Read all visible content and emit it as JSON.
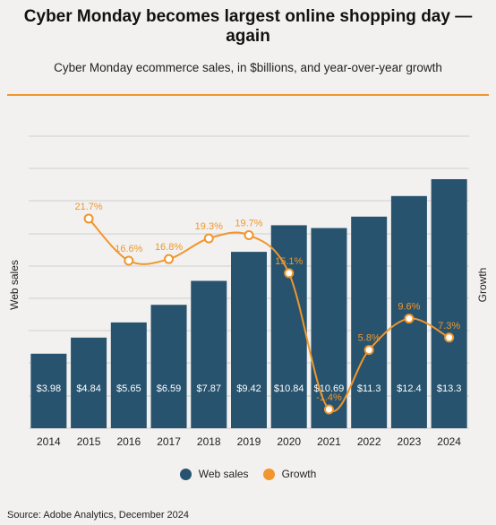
{
  "header": {
    "title": "Cyber Monday becomes largest online shopping day — again",
    "subtitle": "Cyber Monday ecommerce sales, in $billions, and year-over-year growth"
  },
  "footer": {
    "source": "Source: Adobe Analytics, December 2024"
  },
  "colors": {
    "bar": "#27536e",
    "line": "#f0962d",
    "grid": "#d0d0d0",
    "rule": "#f0962d"
  },
  "chart_data": {
    "type": "bar",
    "categories": [
      "2014",
      "2015",
      "2016",
      "2017",
      "2018",
      "2019",
      "2020",
      "2021",
      "2022",
      "2023",
      "2024"
    ],
    "ylabel": "Web sales",
    "y2label": "Growth",
    "ylim": [
      0,
      14
    ],
    "y2lim": [
      -10,
      30
    ],
    "grid": true,
    "legend_position": "bottom",
    "series": [
      {
        "name": "Web sales",
        "type": "bar",
        "values": [
          3.98,
          4.84,
          5.65,
          6.59,
          7.87,
          9.42,
          10.84,
          10.69,
          11.3,
          12.4,
          13.3
        ],
        "labels": [
          "$3.98",
          "$4.84",
          "$5.65",
          "$6.59",
          "$7.87",
          "$9.42",
          "$10.84",
          "$10.69",
          "$11.3",
          "$12.4",
          "$13.3"
        ]
      },
      {
        "name": "Growth",
        "type": "line",
        "x": [
          "2015",
          "2016",
          "2017",
          "2018",
          "2019",
          "2020",
          "2021",
          "2022",
          "2023",
          "2024"
        ],
        "values": [
          21.7,
          16.6,
          16.8,
          19.3,
          19.7,
          15.1,
          -1.4,
          5.8,
          9.6,
          7.3
        ],
        "labels": [
          "21.7%",
          "16.6%",
          "16.8%",
          "19.3%",
          "19.7%",
          "15.1%",
          "-1.4%",
          "5.8%",
          "9.6%",
          "7.3%"
        ]
      }
    ]
  }
}
